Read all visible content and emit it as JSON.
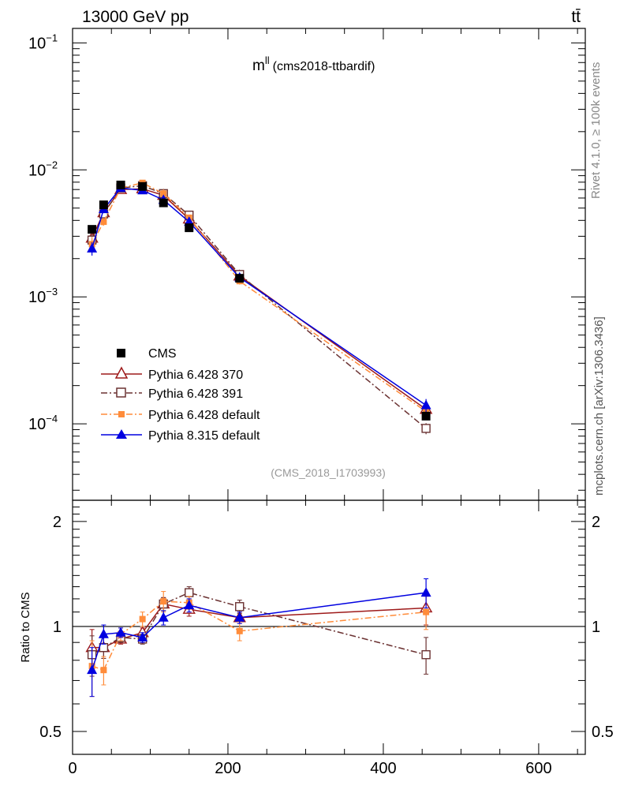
{
  "header": {
    "energy_label": "13000 GeV pp",
    "process_label": "tt̄"
  },
  "side_text": {
    "rivet": "Rivet 4.1.0, ≥ 100k events",
    "source": "mcplots.cern.ch [arXiv:1306.3436]"
  },
  "chart_data": {
    "type": "line",
    "title_main": "m",
    "title_sup": "ll",
    "title_rest": "(cms2018-ttbardif)",
    "watermark": "(CMS_2018_I1703993)",
    "xlim": [
      0,
      660
    ],
    "x_ticks": [
      "0",
      "200",
      "400",
      "600"
    ],
    "x_tick_values": [
      0,
      200,
      400,
      600
    ],
    "main_panel": {
      "scale": "log",
      "ylim": [
        2.5e-05,
        0.13
      ],
      "y_ticks": [
        {
          "value": 0.1,
          "base": "10",
          "exp": "−1"
        },
        {
          "value": 0.01,
          "base": "10",
          "exp": "−2"
        },
        {
          "value": 0.001,
          "base": "10",
          "exp": "−3"
        },
        {
          "value": 0.0001,
          "base": "10",
          "exp": "−4"
        }
      ]
    },
    "ratio_panel": {
      "ylabel": "Ratio to CMS",
      "scale": "log",
      "ylim": [
        0.43,
        2.3
      ],
      "y_ticks": [
        {
          "value": 0.5,
          "label": "0.5"
        },
        {
          "value": 1,
          "label": "1"
        },
        {
          "value": 2,
          "label": "2"
        }
      ]
    },
    "x": [
      25,
      40,
      62,
      90,
      117,
      150,
      215,
      455
    ],
    "data": {
      "name": "CMS",
      "color": "#000000",
      "marker": "square",
      "values": [
        0.0034,
        0.0053,
        0.0076,
        0.0074,
        0.0055,
        0.0035,
        0.0014,
        0.000115
      ]
    },
    "series": [
      {
        "name": "Pythia 6.428 370",
        "color": "#9e1a1a",
        "marker": "triangle-open",
        "dash": "solid",
        "values": [
          0.0029,
          0.0046,
          0.007,
          0.0071,
          0.0063,
          0.0041,
          0.00146,
          0.00013
        ],
        "ratio": [
          0.87,
          0.87,
          0.92,
          0.96,
          1.16,
          1.12,
          1.06,
          1.13
        ],
        "ratio_err": [
          0.11,
          0.06,
          0.03,
          0.03,
          0.05,
          0.05,
          0.04,
          0.12
        ]
      },
      {
        "name": "Pythia 6.428 391",
        "color": "#6b3232",
        "marker": "square-open",
        "dash": "dashdot",
        "values": [
          0.0028,
          0.0045,
          0.0072,
          0.0075,
          0.0065,
          0.0044,
          0.0015,
          9.2e-05
        ],
        "ratio": [
          0.83,
          0.87,
          0.93,
          0.92,
          1.16,
          1.25,
          1.14,
          0.83
        ],
        "ratio_err": [
          0.11,
          0.06,
          0.03,
          0.03,
          0.05,
          0.05,
          0.05,
          0.1
        ]
      },
      {
        "name": "Pythia 6.428 default",
        "color": "#ff8c3a",
        "marker": "square-filled",
        "dash": "dashdot",
        "values": [
          0.0026,
          0.0039,
          0.0072,
          0.0079,
          0.0065,
          0.0042,
          0.00133,
          0.000125
        ],
        "ratio": [
          0.77,
          0.75,
          0.95,
          1.05,
          1.18,
          1.17,
          0.97,
          1.1
        ],
        "ratio_err": [
          0.14,
          0.07,
          0.04,
          0.05,
          0.08,
          0.05,
          0.06,
          0.12
        ]
      },
      {
        "name": "Pythia 8.315 default",
        "color": "#0000e0",
        "marker": "triangle-filled",
        "dash": "solid",
        "values": [
          0.0024,
          0.0049,
          0.0072,
          0.0069,
          0.0058,
          0.0039,
          0.00142,
          0.00014
        ],
        "ratio": [
          0.75,
          0.95,
          0.96,
          0.93,
          1.06,
          1.15,
          1.06,
          1.25
        ],
        "ratio_err": [
          0.12,
          0.06,
          0.03,
          0.03,
          0.05,
          0.05,
          0.04,
          0.12
        ]
      }
    ]
  }
}
